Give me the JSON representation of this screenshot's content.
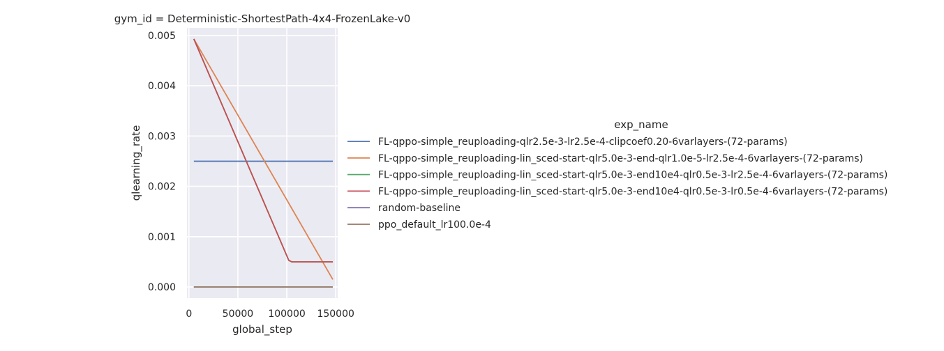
{
  "chart_data": {
    "type": "line",
    "title": "gym_id = Deterministic-ShortestPath-4x4-FrozenLake-v0",
    "xlabel": "global_step",
    "ylabel": "qlearning_rate",
    "xlim": [
      -2000,
      152000
    ],
    "ylim": [
      -0.00022,
      0.00515
    ],
    "xticks": [
      0,
      50000,
      100000,
      150000
    ],
    "xtick_labels": [
      "0",
      "50000",
      "100000",
      "150000"
    ],
    "yticks": [
      0.0,
      0.001,
      0.002,
      0.003,
      0.004,
      0.005
    ],
    "ytick_labels": [
      "0.000",
      "0.001",
      "0.002",
      "0.003",
      "0.004",
      "0.005"
    ],
    "grid": true,
    "legend": {
      "title": "exp_name",
      "placement": "right"
    },
    "series": [
      {
        "name": "FL-qppo-simple_reuploading-qlr2.5e-3-lr2.5e-4-clipcoef0.20-6varlayers-(72-params)",
        "color": "#4c72b0",
        "x": [
          5000,
          147000
        ],
        "y": [
          0.0025,
          0.0025
        ]
      },
      {
        "name": "FL-qppo-simple_reuploading-lin_sced-start-qlr5.0e-3-end-qlr1.0e-5-lr2.5e-4-6varlayers-(72-params)",
        "color": "#dd8452",
        "x": [
          5000,
          147000
        ],
        "y": [
          0.00493,
          0.00015
        ]
      },
      {
        "name": "FL-qppo-simple_reuploading-lin_sced-start-qlr5.0e-3-end10e4-qlr0.5e-3-lr2.5e-4-6varlayers-(72-params)",
        "color": "#55a868",
        "x": [
          5000,
          102000,
          105000,
          147000
        ],
        "y": [
          0.00493,
          0.00053,
          0.0005,
          0.0005
        ]
      },
      {
        "name": "FL-qppo-simple_reuploading-lin_sced-start-qlr5.0e-3-end10e4-qlr0.5e-3-lr0.5e-4-6varlayers-(72-params)",
        "color": "#c44e52",
        "x": [
          5000,
          102000,
          105000,
          147000
        ],
        "y": [
          0.00493,
          0.00053,
          0.0005,
          0.0005
        ]
      },
      {
        "name": "random-baseline",
        "color": "#8172b3",
        "x": [
          5000,
          147000
        ],
        "y": [
          0.0,
          0.0
        ]
      },
      {
        "name": "ppo_default_lr100.0e-4",
        "color": "#937860",
        "x": [
          5000,
          147000
        ],
        "y": [
          0.0,
          0.0
        ]
      }
    ]
  }
}
